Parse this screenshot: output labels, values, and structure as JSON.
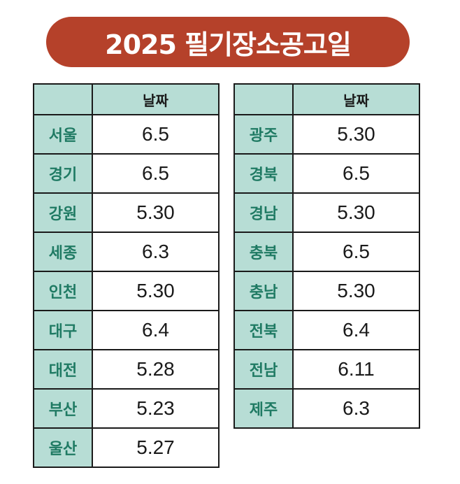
{
  "title": "2025 필기장소공고일",
  "colors": {
    "title_bg": "#b5412a",
    "header_bg": "#b7ddd5",
    "region_text": "#1f7a63"
  },
  "left_table": {
    "header": {
      "region": "",
      "date": "날짜"
    },
    "rows": [
      {
        "region": "서울",
        "date": "6.5"
      },
      {
        "region": "경기",
        "date": "6.5"
      },
      {
        "region": "강원",
        "date": "5.30"
      },
      {
        "region": "세종",
        "date": "6.3"
      },
      {
        "region": "인천",
        "date": "5.30"
      },
      {
        "region": "대구",
        "date": "6.4"
      },
      {
        "region": "대전",
        "date": "5.28"
      },
      {
        "region": "부산",
        "date": "5.23"
      },
      {
        "region": "울산",
        "date": "5.27"
      }
    ]
  },
  "right_table": {
    "header": {
      "region": "",
      "date": "날짜"
    },
    "rows": [
      {
        "region": "광주",
        "date": "5.30"
      },
      {
        "region": "경북",
        "date": "6.5"
      },
      {
        "region": "경남",
        "date": "5.30"
      },
      {
        "region": "충북",
        "date": "6.5"
      },
      {
        "region": "충남",
        "date": "5.30"
      },
      {
        "region": "전북",
        "date": "6.4"
      },
      {
        "region": "전남",
        "date": "6.11"
      },
      {
        "region": "제주",
        "date": "6.3"
      }
    ]
  }
}
